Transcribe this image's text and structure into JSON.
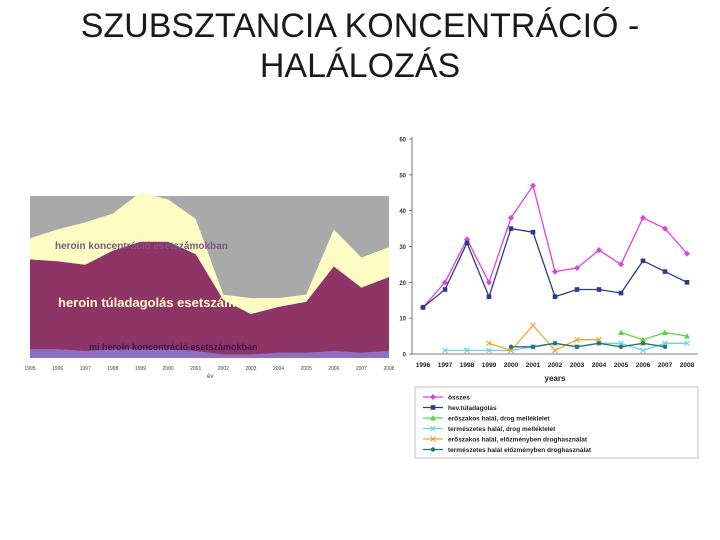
{
  "slide": {
    "title_line1": "SZUBSZTANCIA KONCENTRÁCIÓ -",
    "title_line2": "HALÁLOZÁS"
  },
  "chart_data": [
    {
      "type": "area",
      "x": [
        1995,
        1996,
        1997,
        1998,
        1999,
        2000,
        2001,
        2002,
        2003,
        2004,
        2005,
        2006,
        2007,
        2008
      ],
      "x_tick_labels": [
        "1995",
        "1996",
        "1997",
        "1998",
        "1999",
        "2000",
        "2001",
        "2002",
        "2003",
        "2004",
        "2005",
        "2006",
        "2007",
        "2008"
      ],
      "xlabel": "év",
      "stacked": true,
      "series": [
        {
          "name": "mi heroin koncentráció esetszámokban",
          "color": "#8e6fc0",
          "values": [
            5,
            5,
            4,
            5,
            5,
            5,
            4,
            2,
            2,
            3,
            3,
            4,
            3,
            4
          ]
        },
        {
          "name": "heroin túladagolás esetszámai",
          "color": "#8e3466",
          "values": [
            51,
            50,
            49,
            56,
            61,
            61,
            55,
            31,
            23,
            26,
            29,
            48,
            37,
            42
          ]
        },
        {
          "name": "heroin koncentráció esetszámokban",
          "color": "#fdfcc3",
          "values": [
            12,
            18,
            24,
            21,
            28,
            24,
            20,
            3,
            9,
            5,
            4,
            21,
            17,
            17
          ]
        }
      ],
      "ylim": [
        0,
        92
      ],
      "background": "#a9a9a9"
    },
    {
      "type": "line",
      "x": [
        1996,
        1997,
        1998,
        1999,
        2000,
        2001,
        2002,
        2003,
        2004,
        2005,
        2006,
        2007,
        2008
      ],
      "categories": [
        "1996",
        "1997",
        "1998",
        "1999",
        "2000",
        "2001",
        "2002",
        "2003",
        "2004",
        "2005",
        "2006",
        "2007",
        "2008"
      ],
      "xlabel": "years",
      "ylim": [
        0,
        60
      ],
      "yticks": [
        0,
        10,
        20,
        30,
        40,
        50,
        60
      ],
      "grid": false,
      "legend_position": "bottom",
      "series": [
        {
          "name": "összes",
          "color": "#e040e0",
          "marker": "diamond",
          "values": [
            13,
            20,
            32,
            20,
            38,
            47,
            23,
            24,
            29,
            25,
            38,
            35,
            28
          ]
        },
        {
          "name": "hev.túladagolás",
          "color": "#2b3a8c",
          "marker": "square",
          "values": [
            13,
            18,
            31,
            16,
            35,
            34,
            16,
            18,
            18,
            17,
            26,
            23,
            20
          ]
        },
        {
          "name": "erőszakos halál, drog melléklelet",
          "color": "#5dd645",
          "marker": "triangle",
          "values": [
            null,
            null,
            null,
            null,
            null,
            null,
            null,
            null,
            null,
            6,
            4,
            6,
            5
          ]
        },
        {
          "name": "természetes halál, drog melléklelet",
          "color": "#6fd3e6",
          "marker": "x",
          "values": [
            null,
            1,
            1,
            1,
            1,
            2,
            3,
            2,
            3,
            3,
            1,
            3,
            3
          ]
        },
        {
          "name": "erőszakos halál, előzményben droghasználat",
          "color": "#f0a830",
          "marker": "x",
          "values": [
            null,
            null,
            null,
            3,
            1,
            8,
            1,
            4,
            4,
            null,
            3,
            null,
            null
          ]
        },
        {
          "name": "természetes halál előzményben droghasználat",
          "color": "#2b6f7a",
          "marker": "circle",
          "values": [
            null,
            null,
            null,
            null,
            2,
            2,
            3,
            2,
            3,
            2,
            3,
            2,
            null
          ]
        }
      ]
    }
  ]
}
